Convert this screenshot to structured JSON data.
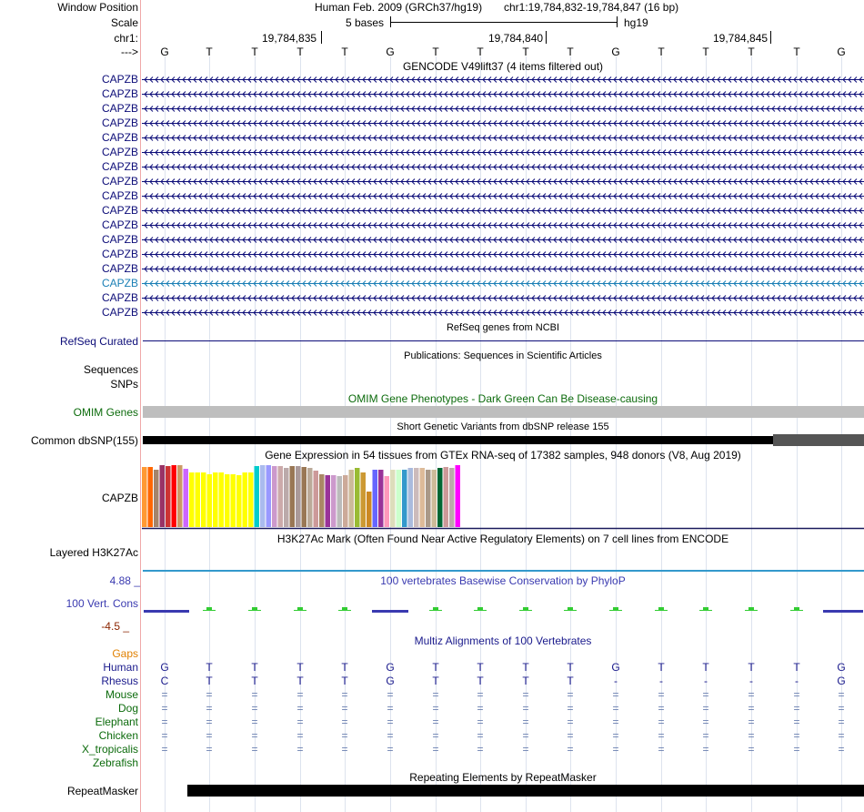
{
  "header": {
    "window_position_label": "Window Position",
    "assembly": "Human Feb. 2009 (GRCh37/hg19)",
    "position": "chr1:19,784,832-19,784,847 (16 bp)",
    "scale_label": "Scale",
    "scale_text": "5 bases",
    "scale_db": "hg19",
    "chrom_label": "chr1:",
    "ticks": [
      "19,784,835",
      "19,784,840",
      "19,784,845"
    ],
    "strand_label": "--->"
  },
  "sequence": [
    "G",
    "T",
    "T",
    "T",
    "T",
    "G",
    "T",
    "T",
    "T",
    "T",
    "G",
    "T",
    "T",
    "T",
    "T",
    "G"
  ],
  "gencode": {
    "title": "GENCODE V49lift37 (4 items filtered out)",
    "items": [
      "CAPZB",
      "CAPZB",
      "CAPZB",
      "CAPZB",
      "CAPZB",
      "CAPZB",
      "CAPZB",
      "CAPZB",
      "CAPZB",
      "CAPZB",
      "CAPZB",
      "CAPZB",
      "CAPZB",
      "CAPZB",
      "CAPZB",
      "CAPZB",
      "CAPZB"
    ],
    "colors": [
      "#0c0c78",
      "#0c0c78",
      "#0c0c78",
      "#0c0c78",
      "#0c0c78",
      "#0c0c78",
      "#0c0c78",
      "#0c0c78",
      "#0c0c78",
      "#0c0c78",
      "#0c0c78",
      "#0c0c78",
      "#0c0c78",
      "#0c0c78",
      "#1a7fb5",
      "#0c0c78",
      "#0c0c78"
    ]
  },
  "refseq": {
    "title": "RefSeq genes from NCBI",
    "label": "RefSeq Curated",
    "color": "#0c0c78"
  },
  "publications": {
    "title": "Publications: Sequences in Scientific Articles",
    "label1": "Sequences",
    "label2": "SNPs"
  },
  "omim": {
    "title": "OMIM Gene Phenotypes - Dark Green Can Be Disease-causing",
    "label": "OMIM Genes",
    "color": "#0c6b0c",
    "bar_color": "#bebebe"
  },
  "dbsnp": {
    "title": "Short Genetic Variants from dbSNP release 155",
    "label": "Common dbSNP(155)"
  },
  "gtex": {
    "title": "Gene Expression in 54 tissues from GTEx RNA-seq of 17382 samples, 948 donors (V8, Aug 2019)",
    "label": "CAPZB",
    "tissue_levels": [
      0.97,
      0.97,
      0.92,
      1.0,
      0.98,
      1.0,
      1.0,
      0.94,
      0.88,
      0.88,
      0.88,
      0.86,
      0.88,
      0.88,
      0.86,
      0.86,
      0.84,
      0.88,
      0.88,
      0.98,
      1.0,
      1.0,
      0.98,
      0.98,
      0.96,
      0.98,
      0.98,
      0.97,
      0.96,
      0.91,
      0.86,
      0.84,
      0.84,
      0.82,
      0.84,
      0.93,
      0.96,
      0.88,
      0.58,
      0.92,
      0.92,
      0.83,
      0.92,
      0.93,
      0.93,
      0.96,
      0.96,
      0.96,
      0.92,
      0.92,
      0.96,
      0.97,
      0.96,
      1.0
    ],
    "tissue_colors": [
      "#ff9933",
      "#ff6600",
      "#a4846b",
      "#993366",
      "#cc3333",
      "#ff0000",
      "#cc9966",
      "#cc66ff",
      "#ffff00",
      "#ffff00",
      "#ffff00",
      "#ffff00",
      "#ffff00",
      "#ffff00",
      "#ffff00",
      "#ffff00",
      "#ffff00",
      "#ffff00",
      "#ffff00",
      "#00cccc",
      "#aabbee",
      "#9999ff",
      "#cc99cc",
      "#ccaaaa",
      "#bbaaaa",
      "#997755",
      "#aa9999",
      "#997755",
      "#bbaa99",
      "#cc9999",
      "#aa8866",
      "#993399",
      "#cc99cc",
      "#bbbbbb",
      "#ccaa99",
      "#ccbb99",
      "#99bb33",
      "#cc9933",
      "#cc8822",
      "#6666ff",
      "#993399",
      "#ff99bb",
      "#ddddbb",
      "#ccffcc",
      "#3399cc",
      "#aabbdd",
      "#ccbbbb",
      "#ddbb99",
      "#aa9988",
      "#ccbb99",
      "#006633",
      "#cc9999",
      "#bbaaaa",
      "#ff00ff"
    ]
  },
  "h3k27ac": {
    "title": "H3K27Ac Mark (Often Found Near Active Regulatory Elements) on 7 cell lines from ENCODE",
    "label": "Layered H3K27Ac"
  },
  "phylop": {
    "title": "100 vertebrates Basewise Conservation by PhyloP",
    "label": "100 Vert. Cons",
    "max": "4.88 _",
    "min": "-4.5 _",
    "color": "#3a3ab0",
    "pos_color": "#33cc33",
    "min_color": "#8b2500"
  },
  "multiz": {
    "title": "Multiz Alignments of 100 Vertebrates",
    "gaps_label": "Gaps",
    "gaps_color": "#e08000",
    "human": {
      "label": "Human",
      "bases": [
        "G",
        "T",
        "T",
        "T",
        "T",
        "G",
        "T",
        "T",
        "T",
        "T",
        "G",
        "T",
        "T",
        "T",
        "T",
        "G"
      ]
    },
    "rhesus": {
      "label": "Rhesus",
      "bases": [
        "C",
        "T",
        "T",
        "T",
        "T",
        "G",
        "T",
        "T",
        "T",
        "T",
        "-",
        "-",
        "-",
        "-",
        "-",
        "G"
      ]
    },
    "others": [
      {
        "label": "Mouse",
        "mark": "="
      },
      {
        "label": "Dog",
        "mark": "="
      },
      {
        "label": "Elephant",
        "mark": "="
      },
      {
        "label": "Chicken",
        "mark": "="
      },
      {
        "label": "X_tropicalis",
        "mark": "="
      },
      {
        "label": "Zebrafish",
        "mark": ""
      }
    ]
  },
  "repeatmasker": {
    "title": "Repeating Elements by RepeatMasker",
    "label": "RepeatMasker"
  }
}
